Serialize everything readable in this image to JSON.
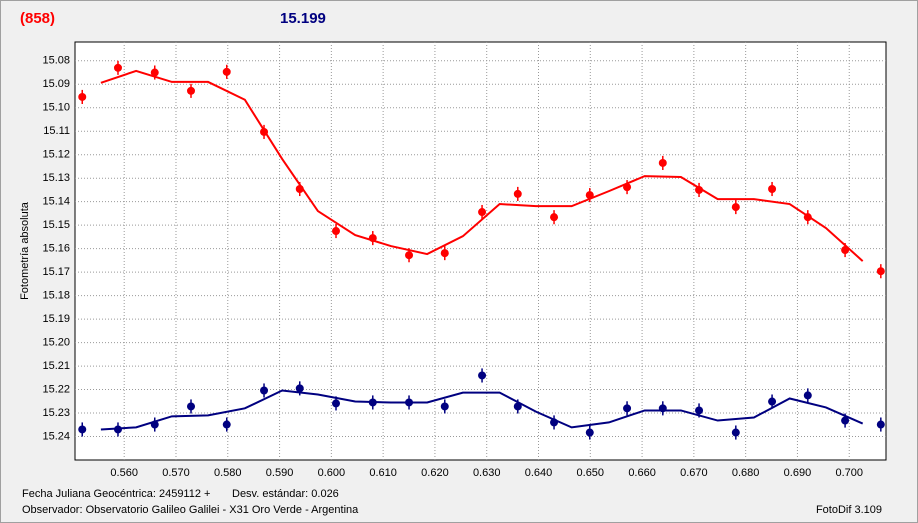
{
  "header": {
    "object": "(858)",
    "magnitude": "15.199"
  },
  "footer": {
    "date": "Fecha Juliana Geocéntrica: 2459112 +",
    "stdev": "Desv. estándar: 0.026",
    "observer": "Observador: Observatorio Galileo Galilei - X31 Oro Verde - Argentina",
    "software": "FotoDif 3.109"
  },
  "chart_data": {
    "type": "scatter",
    "ylabel": "Fotometría absoluta",
    "grid": true,
    "xlim": [
      0.5505,
      0.7071
    ],
    "ylim": [
      15.25,
      15.072
    ],
    "xticks": [
      {
        "value": 0.56,
        "label": "0.560"
      },
      {
        "value": 0.57,
        "label": "0.570"
      },
      {
        "value": 0.58,
        "label": "0.580"
      },
      {
        "value": 0.59,
        "label": "0.590"
      },
      {
        "value": 0.6,
        "label": "0.600"
      },
      {
        "value": 0.61,
        "label": "0.610"
      },
      {
        "value": 0.62,
        "label": "0.620"
      },
      {
        "value": 0.63,
        "label": "0.630"
      },
      {
        "value": 0.64,
        "label": "0.640"
      },
      {
        "value": 0.65,
        "label": "0.650"
      },
      {
        "value": 0.66,
        "label": "0.660"
      },
      {
        "value": 0.67,
        "label": "0.670"
      },
      {
        "value": 0.68,
        "label": "0.680"
      },
      {
        "value": 0.69,
        "label": "0.690"
      },
      {
        "value": 0.7,
        "label": "0.700"
      }
    ],
    "yticks": [
      {
        "value": 15.08,
        "label": "15.08"
      },
      {
        "value": 15.09,
        "label": "15.09"
      },
      {
        "value": 15.1,
        "label": "15.10"
      },
      {
        "value": 15.11,
        "label": "15.11"
      },
      {
        "value": 15.12,
        "label": "15.12"
      },
      {
        "value": 15.13,
        "label": "15.13"
      },
      {
        "value": 15.14,
        "label": "15.14"
      },
      {
        "value": 15.15,
        "label": "15.15"
      },
      {
        "value": 15.16,
        "label": "15.16"
      },
      {
        "value": 15.17,
        "label": "15.17"
      },
      {
        "value": 15.18,
        "label": "15.18"
      },
      {
        "value": 15.19,
        "label": "15.19"
      },
      {
        "value": 15.2,
        "label": "15.20"
      },
      {
        "value": 15.21,
        "label": "15.21"
      },
      {
        "value": 15.22,
        "label": "15.22"
      },
      {
        "value": 15.23,
        "label": "15.23"
      },
      {
        "value": 15.24,
        "label": "15.24"
      }
    ],
    "x": [
      0.5519,
      0.5588,
      0.5659,
      0.5729,
      0.5798,
      0.587,
      0.5939,
      0.6009,
      0.608,
      0.615,
      0.6219,
      0.6291,
      0.636,
      0.643,
      0.6499,
      0.6571,
      0.664,
      0.671,
      0.6781,
      0.6851,
      0.692,
      0.6992,
      0.7061
    ],
    "fit_x": [
      0.5555,
      0.5623,
      0.5692,
      0.5762,
      0.5833,
      0.5905,
      0.5974,
      0.6046,
      0.6115,
      0.6185,
      0.6254,
      0.6325,
      0.6395,
      0.6464,
      0.6536,
      0.6605,
      0.6675,
      0.6746,
      0.6816,
      0.6885,
      0.6955,
      0.7026
    ],
    "series": [
      {
        "color": "#ff0000",
        "error": 0.003,
        "values": [
          15.0954,
          15.083,
          15.085,
          15.0928,
          15.0847,
          15.1103,
          15.1346,
          15.1525,
          15.1555,
          15.1628,
          15.1619,
          15.1444,
          15.1367,
          15.1466,
          15.1372,
          15.1338,
          15.1235,
          15.135,
          15.1423,
          15.1346,
          15.1466,
          15.1606,
          15.1696
        ],
        "fit_values": [
          15.0894,
          15.0843,
          15.089,
          15.089,
          15.0966,
          15.1218,
          15.144,
          15.1542,
          15.1589,
          15.1623,
          15.1547,
          15.141,
          15.1419,
          15.1419,
          15.1355,
          15.1291,
          15.1295,
          15.1389,
          15.1389,
          15.141,
          15.1512,
          15.1653
        ]
      },
      {
        "color": "#000080",
        "error": 0.003,
        "values": [
          15.237,
          15.237,
          15.2349,
          15.2272,
          15.2349,
          15.2204,
          15.2195,
          15.2259,
          15.2255,
          15.2255,
          15.2272,
          15.214,
          15.2272,
          15.234,
          15.2383,
          15.228,
          15.228,
          15.2289,
          15.2383,
          15.2251,
          15.2225,
          15.2332,
          15.2349
        ],
        "fit_values": [
          15.237,
          15.2361,
          15.2314,
          15.231,
          15.228,
          15.2204,
          15.2221,
          15.2251,
          15.2255,
          15.2255,
          15.2213,
          15.2213,
          15.2294,
          15.2361,
          15.234,
          15.2289,
          15.2289,
          15.2332,
          15.2319,
          15.2238,
          15.2276,
          15.2345
        ]
      }
    ]
  }
}
